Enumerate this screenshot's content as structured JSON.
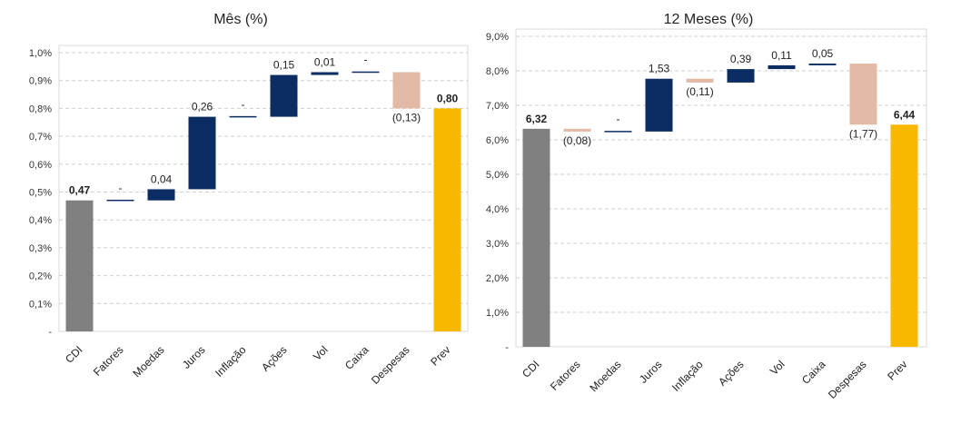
{
  "chart_data": [
    {
      "type": "bar",
      "subtype": "waterfall",
      "title": "Mês (%)",
      "categories": [
        "CDI",
        "Fatores",
        "Moedas",
        "Juros",
        "Inflação",
        "Ações",
        "Vol",
        "Caixa",
        "Despesas",
        "Prev"
      ],
      "values": [
        0.47,
        0.0,
        0.04,
        0.26,
        0.0,
        0.15,
        0.01,
        0.0,
        -0.13,
        0.8
      ],
      "value_labels": [
        "0,47",
        "-",
        "0,04",
        "0,26",
        "-",
        "0,15",
        "0,01",
        "-",
        "(0,13)",
        "0,80"
      ],
      "bar_kinds": [
        "base",
        "step",
        "step",
        "step",
        "step",
        "step",
        "step",
        "step",
        "step",
        "total"
      ],
      "ylim": [
        0,
        1.0
      ],
      "yticks": [
        0,
        0.1,
        0.2,
        0.3,
        0.4,
        0.5,
        0.6,
        0.7,
        0.8,
        0.9,
        1.0
      ],
      "ytick_labels": [
        "-",
        "0,1%",
        "0,2%",
        "0,3%",
        "0,4%",
        "0,5%",
        "0,6%",
        "0,7%",
        "0,8%",
        "0,9%",
        "1,0%"
      ],
      "grid": true,
      "colors": {
        "base": "#808080",
        "positive": "#0b2d63",
        "negative": "#e2b9a5",
        "total": "#f8b800"
      }
    },
    {
      "type": "bar",
      "subtype": "waterfall",
      "title": "12 Meses (%)",
      "categories": [
        "CDI",
        "Fatores",
        "Moedas",
        "Juros",
        "Inflação",
        "Ações",
        "Vol",
        "Caixa",
        "Despesas",
        "Prev"
      ],
      "values": [
        6.32,
        -0.08,
        0.0,
        1.53,
        -0.11,
        0.39,
        0.11,
        0.05,
        -1.77,
        6.44
      ],
      "value_labels": [
        "6,32",
        "(0,08)",
        "-",
        "1,53",
        "(0,11)",
        "0,39",
        "0,11",
        "0,05",
        "(1,77)",
        "6,44"
      ],
      "bar_kinds": [
        "base",
        "step",
        "step",
        "step",
        "step",
        "step",
        "step",
        "step",
        "step",
        "total"
      ],
      "ylim": [
        0,
        9.0
      ],
      "yticks": [
        0,
        1,
        2,
        3,
        4,
        5,
        6,
        7,
        8,
        9
      ],
      "ytick_labels": [
        "-",
        "1,0%",
        "2,0%",
        "3,0%",
        "4,0%",
        "5,0%",
        "6,0%",
        "7,0%",
        "8,0%",
        "9,0%"
      ],
      "grid": true,
      "colors": {
        "base": "#808080",
        "positive": "#0b2d63",
        "negative": "#e2b9a5",
        "total": "#f8b800"
      }
    }
  ]
}
